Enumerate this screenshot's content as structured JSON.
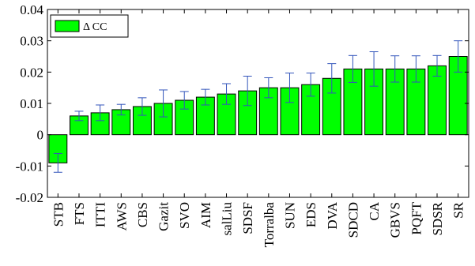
{
  "chart_data": {
    "type": "bar",
    "title": "",
    "xlabel": "",
    "ylabel": "",
    "categories": [
      "STB",
      "FTS",
      "ITTI",
      "AWS",
      "CBS",
      "Gazit",
      "SVO",
      "AIM",
      "salLiu",
      "SDSF",
      "Torralba",
      "SUN",
      "EDS",
      "DVA",
      "SDCD",
      "CA",
      "GBVS",
      "PQFT",
      "SDSR",
      "SR"
    ],
    "series": [
      {
        "name": "Δ CC",
        "color": "#00ff00",
        "values": [
          -0.009,
          0.006,
          0.007,
          0.008,
          0.009,
          0.01,
          0.011,
          0.012,
          0.013,
          0.014,
          0.015,
          0.015,
          0.016,
          0.018,
          0.021,
          0.021,
          0.021,
          0.021,
          0.022,
          0.025
        ],
        "error": [
          0.003,
          0.0015,
          0.0025,
          0.0017,
          0.0028,
          0.0043,
          0.0028,
          0.0025,
          0.0033,
          0.0047,
          0.0032,
          0.0047,
          0.0037,
          0.0047,
          0.0043,
          0.0055,
          0.0042,
          0.0042,
          0.0033,
          0.005
        ]
      }
    ],
    "ylim": [
      -0.02,
      0.04
    ],
    "yticks": [
      "-0.02",
      "-0.01",
      "0",
      "0.01",
      "0.02",
      "0.03",
      "0.04"
    ],
    "error_bar_color": "#3355bb",
    "legend_position": "top-left",
    "grid": false
  }
}
